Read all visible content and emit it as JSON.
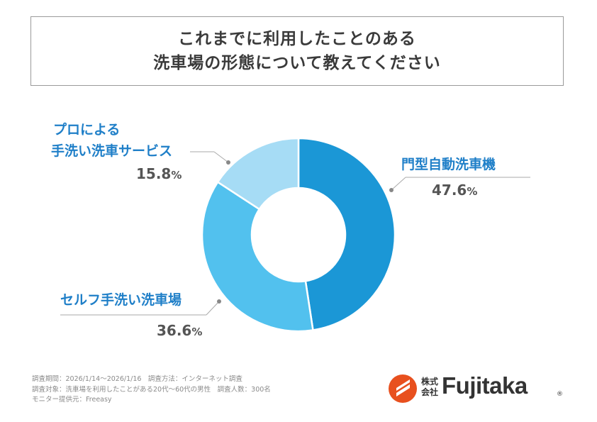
{
  "title": {
    "line1": "これまでに利用したことのある",
    "line2": "洗車場の形態について教えてください"
  },
  "chart_data": {
    "type": "pie",
    "donut": true,
    "title": "これまでに利用したことのある洗車場の形態について教えてください",
    "slices": [
      {
        "label": "門型自動洗車機",
        "value": 47.6,
        "value_text": "47.6",
        "color": "#1b97d6"
      },
      {
        "label": "セルフ手洗い洗車場",
        "value": 36.6,
        "value_text": "36.6",
        "color": "#52c1ee"
      },
      {
        "label_lines": [
          "プロによる",
          "手洗い洗車サービス"
        ],
        "value": 15.8,
        "value_text": "15.8",
        "color": "#a6dcf5"
      }
    ],
    "unit": "%"
  },
  "footer": {
    "line1": "調査期間：2026/1/14～2026/1/16　調査方法：インターネット調査",
    "line2": "調査対象：洗車場を利用したことがある20代～60代の男性　調査人数：300名",
    "line3": "モニター提供元：Freeasy"
  },
  "logo": {
    "kabushiki": "株式",
    "kaisha": "会社",
    "name": "Fujitaka",
    "registered": "®",
    "brand_color": "#e8501e"
  }
}
